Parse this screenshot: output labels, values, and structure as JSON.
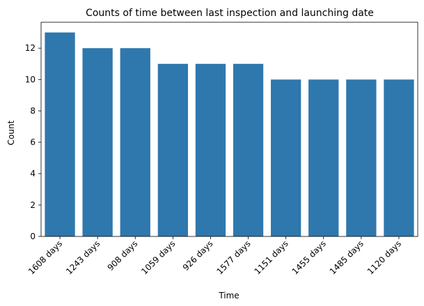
{
  "chart_data": {
    "type": "bar",
    "title": "Counts of time between last inspection and launching date",
    "xlabel": "Time",
    "ylabel": "Count",
    "categories": [
      "1608 days",
      "1243 days",
      "908 days",
      "1059 days",
      "926 days",
      "1577 days",
      "1151 days",
      "1455 days",
      "1485 days",
      "1120 days"
    ],
    "values": [
      13,
      12,
      12,
      11,
      11,
      11,
      10,
      10,
      10,
      10
    ],
    "ylim": [
      0,
      13.65
    ],
    "yticks": [
      0,
      2,
      4,
      6,
      8,
      10,
      12
    ],
    "bar_color": "#2e78ae",
    "grid": false,
    "legend": "none"
  }
}
